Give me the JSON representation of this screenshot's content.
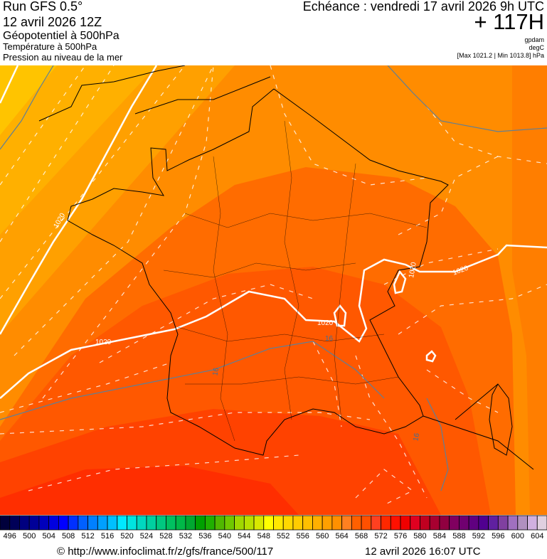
{
  "header": {
    "run": "Run GFS 0.5°",
    "run_date": "12 avril 2026 12Z",
    "field_1": "Géopotentiel à 500hPa",
    "field_2": "Température à 500hPa",
    "field_3": "Pression au niveau de la mer",
    "echeance": "Echéance : vendredi 17 avril 2026 9h UTC",
    "lead_time": "+ 117H",
    "unit_1": "gpdam",
    "unit_2": "degC",
    "unit_3": "[Max 1021.2 | Min 1013.8] hPa"
  },
  "map": {
    "region": "France",
    "isobar_labels": [
      "1020",
      "1020",
      "1020",
      "1020",
      "1020"
    ],
    "isotherm_labels": [
      "16",
      "16",
      "16"
    ],
    "colors": {
      "isobar": "#ffffff",
      "isotherm": "#ffffff",
      "contour_grey": "#5f7f96",
      "coast": "#000000"
    }
  },
  "colorbar": {
    "labels": [
      "496",
      "500",
      "504",
      "508",
      "512",
      "516",
      "520",
      "524",
      "528",
      "532",
      "536",
      "540",
      "544",
      "548",
      "552",
      "556",
      "560",
      "564",
      "568",
      "572",
      "576",
      "580",
      "584",
      "588",
      "592",
      "596",
      "600",
      "604"
    ],
    "colors": [
      "#00003c",
      "#000058",
      "#000080",
      "#000098",
      "#0000bc",
      "#0000e0",
      "#0000ff",
      "#0030ff",
      "#0060ff",
      "#0080ff",
      "#00a0ff",
      "#00c0ff",
      "#00e8ff",
      "#00e4e0",
      "#00d8c0",
      "#00d0a0",
      "#00c880",
      "#00c060",
      "#00b848",
      "#00a830",
      "#00a000",
      "#20b000",
      "#50b800",
      "#70c800",
      "#a0d800",
      "#b8e000",
      "#d8e800",
      "#ffff00",
      "#ffe800",
      "#ffd800",
      "#ffcc00",
      "#ffc000",
      "#ffb000",
      "#ffa000",
      "#ff9000",
      "#ff8020",
      "#ff6000",
      "#ff5000",
      "#ff4020",
      "#ff2800",
      "#ff1000",
      "#f00000",
      "#e00020",
      "#c00020",
      "#a80030",
      "#900040",
      "#800060",
      "#700070",
      "#600080",
      "#500090",
      "#6020a0",
      "#8040a0",
      "#a070c0",
      "#b090c0",
      "#d0b0e0",
      "#e0d0e0"
    ]
  },
  "footer": {
    "copyright": "© http://www.infoclimat.fr/z/gfs/france/500/117",
    "generated": "12 avril 2026 16:07 UTC"
  }
}
